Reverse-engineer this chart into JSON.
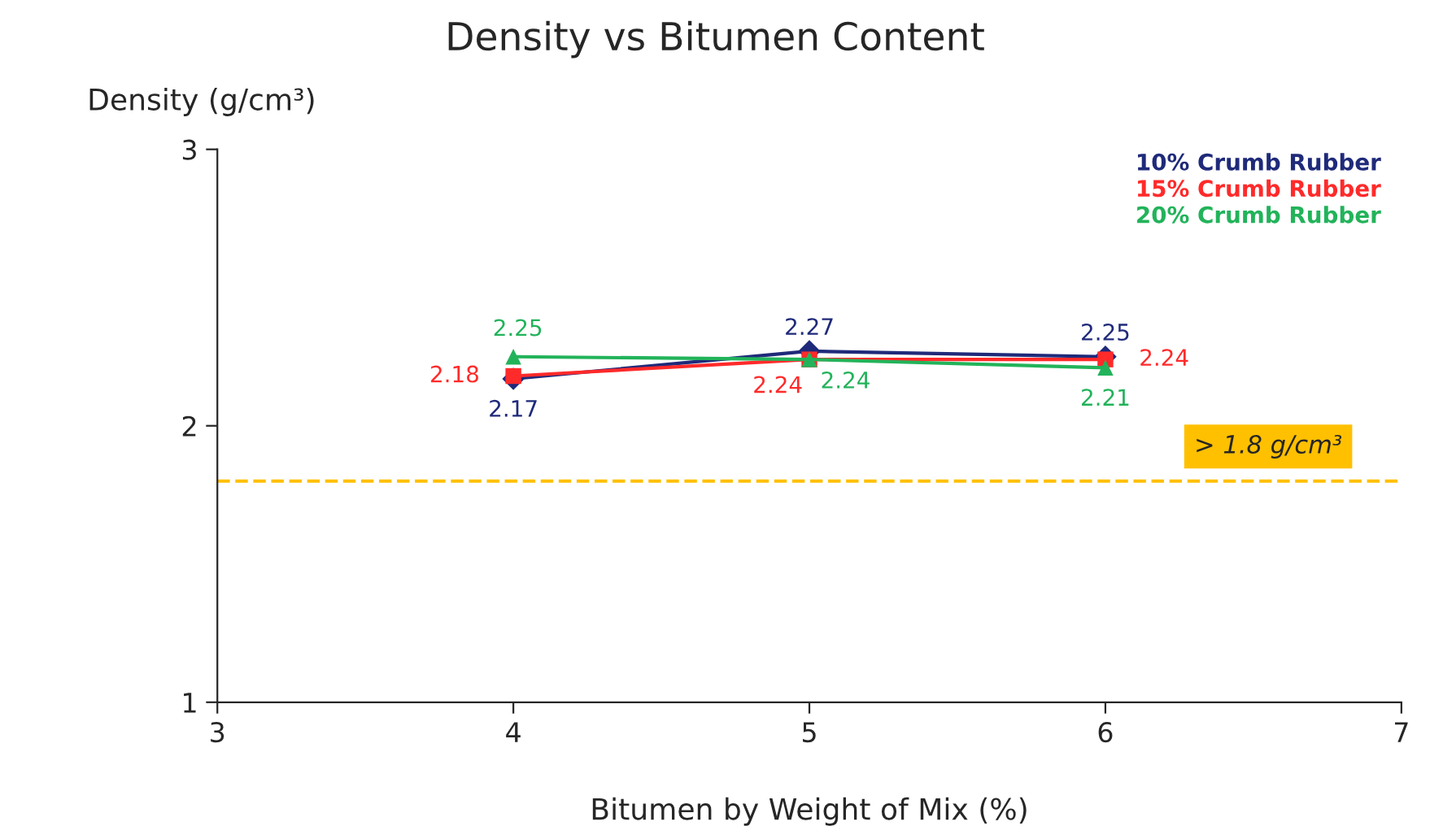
{
  "chart_data": {
    "type": "line",
    "title": "Density vs Bitumen Content",
    "xlabel": "Bitumen by Weight of Mix (%)",
    "ylabel": "Density (g/cm³)",
    "x": [
      4,
      5,
      6
    ],
    "series": [
      {
        "name": "10% Crumb Rubber",
        "color": "#1f2a7a",
        "marker": "diamond",
        "values": [
          2.17,
          2.27,
          2.25
        ]
      },
      {
        "name": "15% Crumb Rubber",
        "color": "#ff2a2a",
        "marker": "square",
        "values": [
          2.18,
          2.24,
          2.24
        ]
      },
      {
        "name": "20% Crumb Rubber",
        "color": "#22b35a",
        "marker": "triangle",
        "values": [
          2.25,
          2.24,
          2.21
        ]
      }
    ],
    "xlim": [
      3,
      7
    ],
    "xticks": [
      3,
      4,
      5,
      6,
      7
    ],
    "ylim": [
      1,
      3
    ],
    "yticks": [
      1,
      2,
      3
    ],
    "ref_lines": [
      {
        "axis": "y",
        "value": 1.8,
        "label": "> 1.8 g/cm³",
        "color": "#ffc000",
        "line_style": "dashed"
      }
    ],
    "data_labels": true,
    "legend": "top right",
    "grid": false,
    "line_style": "solid"
  }
}
